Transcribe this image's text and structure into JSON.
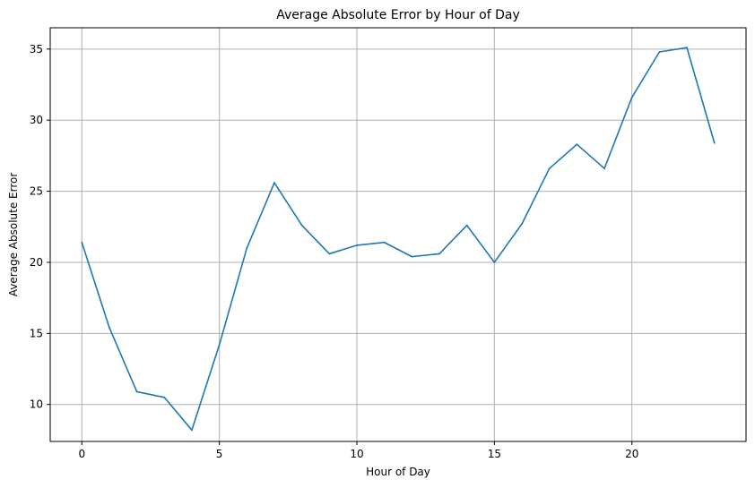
{
  "chart_data": {
    "type": "line",
    "title": "Average Absolute Error by Hour of Day",
    "xlabel": "Hour of Day",
    "ylabel": "Average Absolute Error",
    "xlim": [
      -1.15,
      24.15
    ],
    "ylim": [
      7.4,
      36.5
    ],
    "xticks": [
      0,
      5,
      10,
      15,
      20
    ],
    "yticks": [
      10,
      15,
      20,
      25,
      30,
      35
    ],
    "grid": true,
    "series": [
      {
        "color": "#1f77b4",
        "x": [
          0,
          1,
          2,
          3,
          4,
          5,
          6,
          7,
          8,
          9,
          10,
          11,
          12,
          13,
          14,
          15,
          16,
          17,
          18,
          19,
          20,
          21,
          22,
          23
        ],
        "values": [
          21.4,
          15.4,
          10.9,
          10.5,
          8.2,
          14.2,
          21.0,
          25.6,
          22.6,
          20.6,
          21.2,
          21.4,
          20.4,
          20.6,
          22.6,
          20.0,
          22.7,
          26.6,
          28.3,
          26.6,
          31.6,
          34.8,
          35.1,
          28.4
        ]
      }
    ]
  }
}
